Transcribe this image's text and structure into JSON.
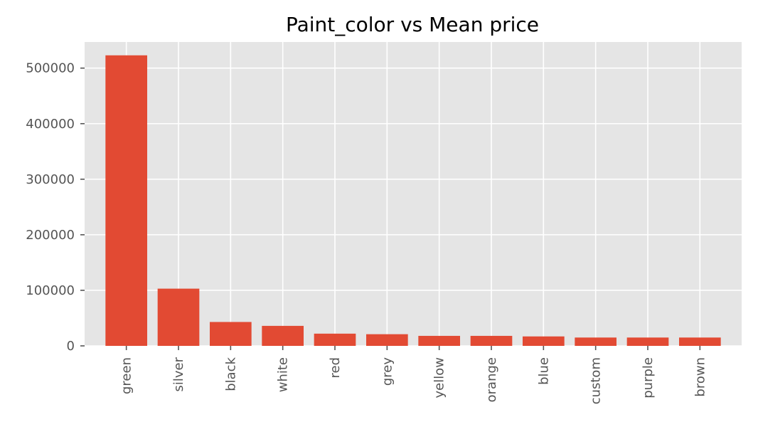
{
  "chart_data": {
    "type": "bar",
    "title": "Paint_color vs Mean price",
    "xlabel": "",
    "ylabel": "",
    "categories": [
      "green",
      "silver",
      "black",
      "white",
      "red",
      "grey",
      "yellow",
      "orange",
      "blue",
      "custom",
      "purple",
      "brown"
    ],
    "values": [
      523000,
      103000,
      43000,
      36000,
      22000,
      21000,
      18000,
      18000,
      17000,
      15000,
      15000,
      15000
    ],
    "ylim": [
      0,
      547000
    ],
    "yticks": [
      0,
      100000,
      200000,
      300000,
      400000,
      500000
    ],
    "grid": true,
    "style": "ggplot",
    "colors": {
      "bar": "#E24A33",
      "plot_bg": "#E5E5E5",
      "grid": "#FFFFFF",
      "tick_text": "#555555"
    }
  }
}
